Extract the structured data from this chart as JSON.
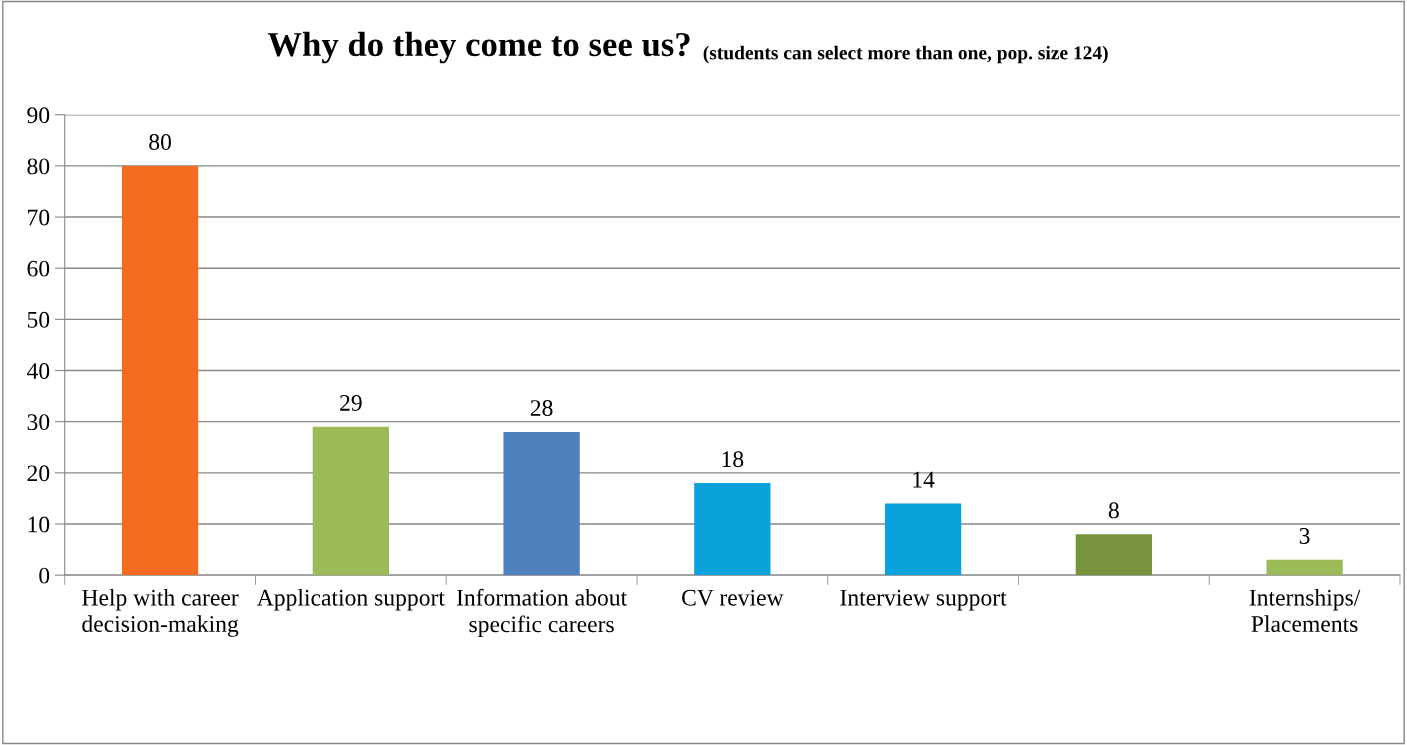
{
  "chart_data": {
    "type": "bar",
    "title": "Why do they come to see us?",
    "subtitle": "(students can select more than one, pop. size 124)",
    "categories": [
      "Help with career decision-making",
      "Application support",
      "Information about specific careers",
      "CV review",
      "Interview support",
      null,
      "Internships/ Placements"
    ],
    "values": [
      80,
      29,
      28,
      18,
      14,
      8,
      3
    ],
    "colors": [
      "#f56b20",
      "#9bbb59",
      "#4f81bd",
      "#0ba2db",
      "#0ba2db",
      "#77933c",
      "#9bbb59"
    ],
    "ylim": [
      0,
      90
    ],
    "yticks": [
      0,
      10,
      20,
      30,
      40,
      50,
      60,
      70,
      80,
      90
    ],
    "grid": "y",
    "data_labels": true
  }
}
